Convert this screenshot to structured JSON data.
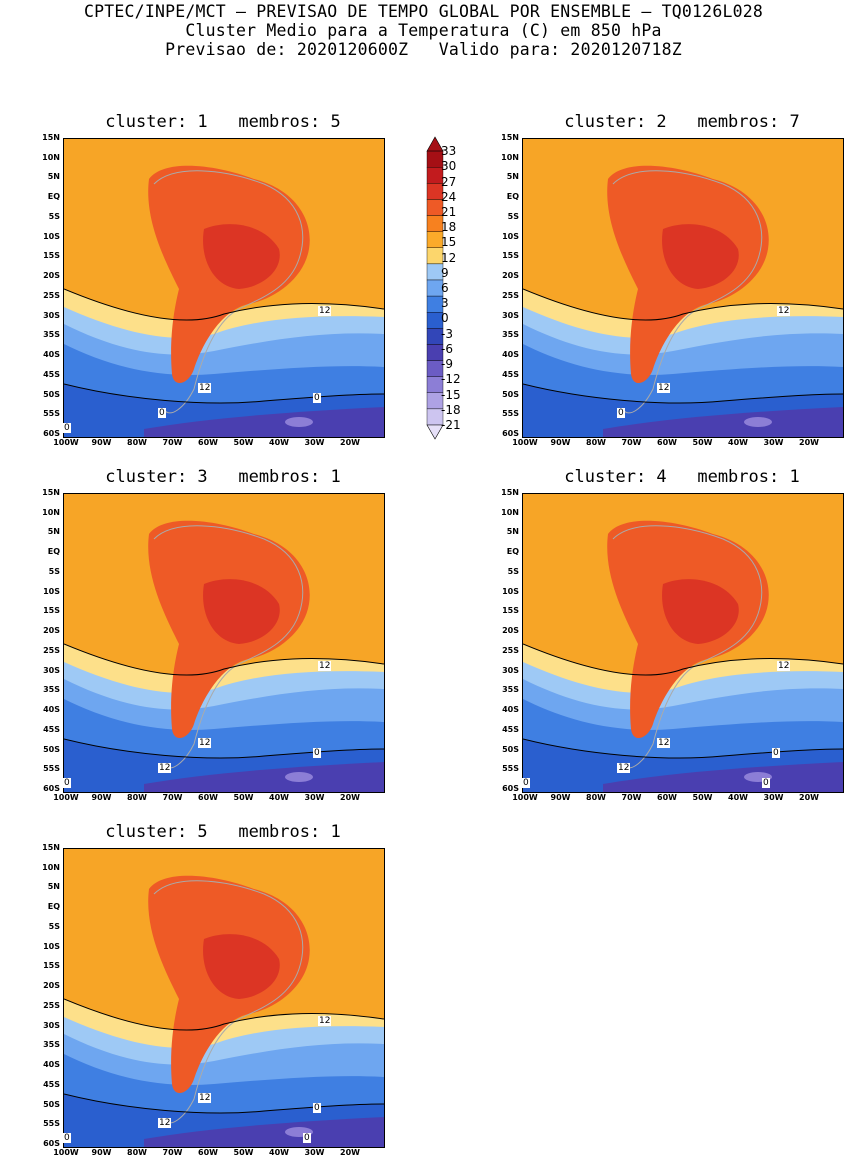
{
  "header": {
    "line1": "CPTEC/INPE/MCT – PREVISAO DE TEMPO GLOBAL POR ENSEMBLE – TQ0126L028",
    "line2": "Cluster Medio para a Temperatura (C) em 850 hPa",
    "line3": "Previsao de: 2020120600Z   Valido para: 2020120718Z"
  },
  "axes": {
    "lat_ticks": [
      "15N",
      "10N",
      "5N",
      "EQ",
      "5S",
      "10S",
      "15S",
      "20S",
      "25S",
      "30S",
      "35S",
      "40S",
      "45S",
      "50S",
      "55S",
      "60S"
    ],
    "lon_ticks": [
      "100W",
      "90W",
      "80W",
      "70W",
      "60W",
      "50W",
      "40W",
      "30W",
      "20W"
    ]
  },
  "colorbar": {
    "labels": [
      "33",
      "30",
      "27",
      "24",
      "21",
      "18",
      "15",
      "12",
      "9",
      "6",
      "3",
      "0",
      "-3",
      "-6",
      "-9",
      "-12",
      "-15",
      "-18",
      "-21"
    ],
    "colors": [
      "#a50f15",
      "#c21b1e",
      "#dc3524",
      "#ee5a26",
      "#f7811f",
      "#fbaa2a",
      "#fcd66c",
      "#9ec9f5",
      "#6ea6f0",
      "#3f7fe2",
      "#2a5fcf",
      "#3246b8",
      "#4a3fb0",
      "#6b5cc4",
      "#8c7ed6",
      "#aea2e4",
      "#cdc5f0"
    ]
  },
  "panels": [
    {
      "title": "cluster: 1   membros: 5",
      "contour_labels": [
        "12",
        "12",
        "0",
        "0",
        "0"
      ]
    },
    {
      "title": "cluster: 2   membros: 7",
      "contour_labels": [
        "12",
        "12",
        "0"
      ]
    },
    {
      "title": "cluster: 3   membros: 1",
      "contour_labels": [
        "12",
        "12",
        "12",
        "0",
        "0"
      ]
    },
    {
      "title": "cluster: 4   membros: 1",
      "contour_labels": [
        "12",
        "12",
        "12",
        "0",
        "0",
        "0"
      ]
    },
    {
      "title": "cluster: 5   membros: 1",
      "contour_labels": [
        "12",
        "12",
        "12",
        "0",
        "0",
        "0"
      ]
    }
  ]
}
